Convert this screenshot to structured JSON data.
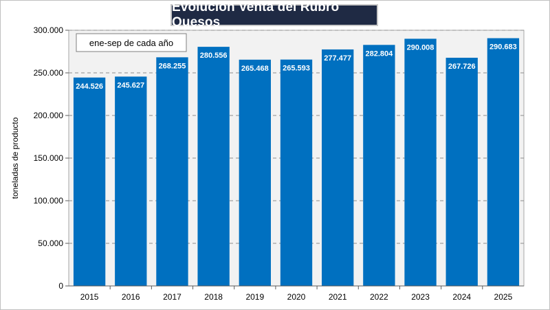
{
  "chart_data": {
    "type": "bar",
    "title": "Evolución Venta del Rubro Quesos",
    "note": "ene-sep de cada año",
    "ylabel": "toneladas de producto",
    "xlabel": "",
    "categories": [
      "2015",
      "2016",
      "2017",
      "2018",
      "2019",
      "2020",
      "2021",
      "2022",
      "2023",
      "2024",
      "2025"
    ],
    "values": [
      244526,
      245627,
      268255,
      280556,
      265468,
      265593,
      277477,
      282804,
      290008,
      267726,
      290683
    ],
    "value_labels": [
      "244.526",
      "245.627",
      "268.255",
      "280.556",
      "265.468",
      "265.593",
      "277.477",
      "282.804",
      "290.008",
      "267.726",
      "290.683"
    ],
    "ylim": [
      0,
      300000
    ],
    "yticks": [
      0,
      50000,
      100000,
      150000,
      200000,
      250000,
      300000
    ],
    "ytick_labels": [
      "0",
      "50.000",
      "100.000",
      "150.000",
      "200.000",
      "250.000",
      "300.000"
    ],
    "grid": true,
    "colors": {
      "bar": "#0070c0",
      "plot_bg": "#f2f2f2",
      "title_bg": "#1f2a44",
      "grid": "#8c8c8c"
    }
  }
}
